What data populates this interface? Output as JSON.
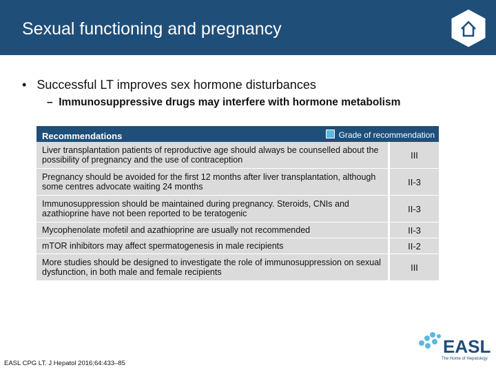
{
  "header": {
    "title": "Sexual functioning and pregnancy"
  },
  "bullets": [
    {
      "text": "Successful LT improves sex hormone disturbances",
      "sub": "Immunosuppressive drugs may interfere with hormone metabolism"
    }
  ],
  "table": {
    "header": "Recommendations",
    "legend": "Grade of recommendation",
    "rows": [
      [
        "Liver transplantation patients of reproductive age should always be counselled about the possibility of pregnancy and the use of contraception",
        "III"
      ],
      [
        "Pregnancy should be avoided for the first 12 months after liver transplantation, although some centres advocate waiting 24 months",
        "II-3"
      ],
      [
        "Immunosuppression should be maintained during pregnancy. Steroids, CNIs and azathioprine have not been reported to be teratogenic",
        "II-3"
      ],
      [
        "Mycophenolate mofetil and azathioprine are usually not recommended",
        "II-3"
      ],
      [
        "mTOR inhibitors may affect spermatogenesis in male recipients",
        "II-2"
      ],
      [
        "More studies should be designed to investigate the role of immunosuppression on sexual dysfunction, in both male and female recipients",
        "III"
      ]
    ]
  },
  "footer": {
    "citation": "EASL CPG LT. J Hepatol 2016;64:433–85",
    "logo": "EASL",
    "tagline": "The Home of Hepatology"
  }
}
